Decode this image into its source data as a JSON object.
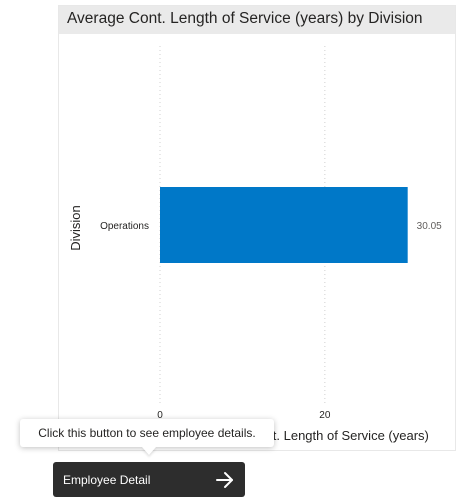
{
  "card": {
    "title": "Average Cont. Length of Service (years) by Division"
  },
  "chart_data": {
    "type": "bar",
    "orientation": "horizontal",
    "title": "Average Cont. Length of Service (years) by Division",
    "categories": [
      "Operations"
    ],
    "values": [
      30.05
    ],
    "data_labels": [
      "30.05"
    ],
    "xlabel": "Average Cont. Length of Service (years)",
    "ylabel": "Division",
    "xticks": [
      "0",
      "20"
    ],
    "tick_values": [
      0,
      20
    ],
    "xlim": [
      0,
      33
    ],
    "grid": true,
    "bar_color": "#0078c8"
  },
  "tooltip": {
    "text": "Click this button to see employee details."
  },
  "detail_button": {
    "label": "Employee Detail",
    "icon": "arrow-right-icon"
  }
}
